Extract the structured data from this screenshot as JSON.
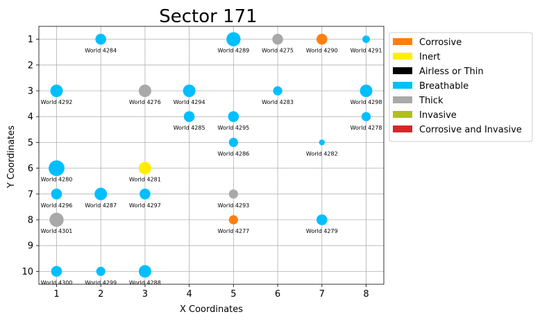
{
  "chart_data": {
    "type": "scatter",
    "title": "Sector 171",
    "xlabel": "X Coordinates",
    "ylabel": "Y Coordinates",
    "xlim": [
      0.6,
      8.4
    ],
    "ylim": [
      10.5,
      0.5
    ],
    "y_inverted": true,
    "xticks": [
      1,
      2,
      3,
      4,
      5,
      6,
      7,
      8
    ],
    "yticks": [
      1,
      2,
      3,
      4,
      5,
      6,
      7,
      8,
      9,
      10
    ],
    "grid": true,
    "legend_position": "outside-top-right",
    "categories": [
      {
        "name": "Corrosive",
        "color": "#ff7f0e"
      },
      {
        "name": "Inert",
        "color": "#ffee00"
      },
      {
        "name": "Airless or Thin",
        "color": "#000000"
      },
      {
        "name": "Breathable",
        "color": "#00bfff"
      },
      {
        "name": "Thick",
        "color": "#a9a9a9"
      },
      {
        "name": "Invasive",
        "color": "#afbf1f"
      },
      {
        "name": "Corrosive and Invasive",
        "color": "#d62728"
      }
    ],
    "points": [
      {
        "label": "World 4284",
        "x": 2,
        "y": 1,
        "type": "Breathable",
        "size": 2
      },
      {
        "label": "World 4289",
        "x": 5,
        "y": 1,
        "type": "Breathable",
        "size": 3
      },
      {
        "label": "World 4275",
        "x": 6,
        "y": 1,
        "type": "Thick",
        "size": 2
      },
      {
        "label": "World 4290",
        "x": 7,
        "y": 1,
        "type": "Corrosive",
        "size": 2
      },
      {
        "label": "World 4291",
        "x": 8,
        "y": 1,
        "type": "Breathable",
        "size": 1
      },
      {
        "label": "World 4292",
        "x": 1,
        "y": 3,
        "type": "Breathable",
        "size": 2.5
      },
      {
        "label": "World 4276",
        "x": 3,
        "y": 3,
        "type": "Thick",
        "size": 2.5
      },
      {
        "label": "World 4294",
        "x": 4,
        "y": 3,
        "type": "Breathable",
        "size": 2.5
      },
      {
        "label": "World 4283",
        "x": 6,
        "y": 3,
        "type": "Breathable",
        "size": 1.5
      },
      {
        "label": "World 4298",
        "x": 8,
        "y": 3,
        "type": "Breathable",
        "size": 2.5
      },
      {
        "label": "World 4285",
        "x": 4,
        "y": 4,
        "type": "Breathable",
        "size": 2
      },
      {
        "label": "World 4295",
        "x": 5,
        "y": 4,
        "type": "Breathable",
        "size": 2
      },
      {
        "label": "World 4278",
        "x": 8,
        "y": 4,
        "type": "Breathable",
        "size": 1.5
      },
      {
        "label": "World 4286",
        "x": 5,
        "y": 5,
        "type": "Breathable",
        "size": 1.5
      },
      {
        "label": "World 4282",
        "x": 7,
        "y": 5,
        "type": "Breathable",
        "size": 0.5
      },
      {
        "label": "World 4280",
        "x": 1,
        "y": 6,
        "type": "Breathable",
        "size": 3.5
      },
      {
        "label": "World 4281",
        "x": 3,
        "y": 6,
        "type": "Inert",
        "size": 2.5
      },
      {
        "label": "World 4296",
        "x": 1,
        "y": 7,
        "type": "Breathable",
        "size": 2
      },
      {
        "label": "World 4287",
        "x": 2,
        "y": 7,
        "type": "Breathable",
        "size": 2.5
      },
      {
        "label": "World 4297",
        "x": 3,
        "y": 7,
        "type": "Breathable",
        "size": 2
      },
      {
        "label": "World 4293",
        "x": 5,
        "y": 7,
        "type": "Thick",
        "size": 1.5
      },
      {
        "label": "World 4301",
        "x": 1,
        "y": 8,
        "type": "Thick",
        "size": 3
      },
      {
        "label": "World 4277",
        "x": 5,
        "y": 8,
        "type": "Corrosive",
        "size": 1.5
      },
      {
        "label": "World 4279",
        "x": 7,
        "y": 8,
        "type": "Breathable",
        "size": 2
      },
      {
        "label": "World 4300",
        "x": 1,
        "y": 10,
        "type": "Breathable",
        "size": 2
      },
      {
        "label": "World 4299",
        "x": 2,
        "y": 10,
        "type": "Breathable",
        "size": 1.5
      },
      {
        "label": "World 4288",
        "x": 3,
        "y": 10,
        "type": "Breathable",
        "size": 2.5
      }
    ]
  }
}
